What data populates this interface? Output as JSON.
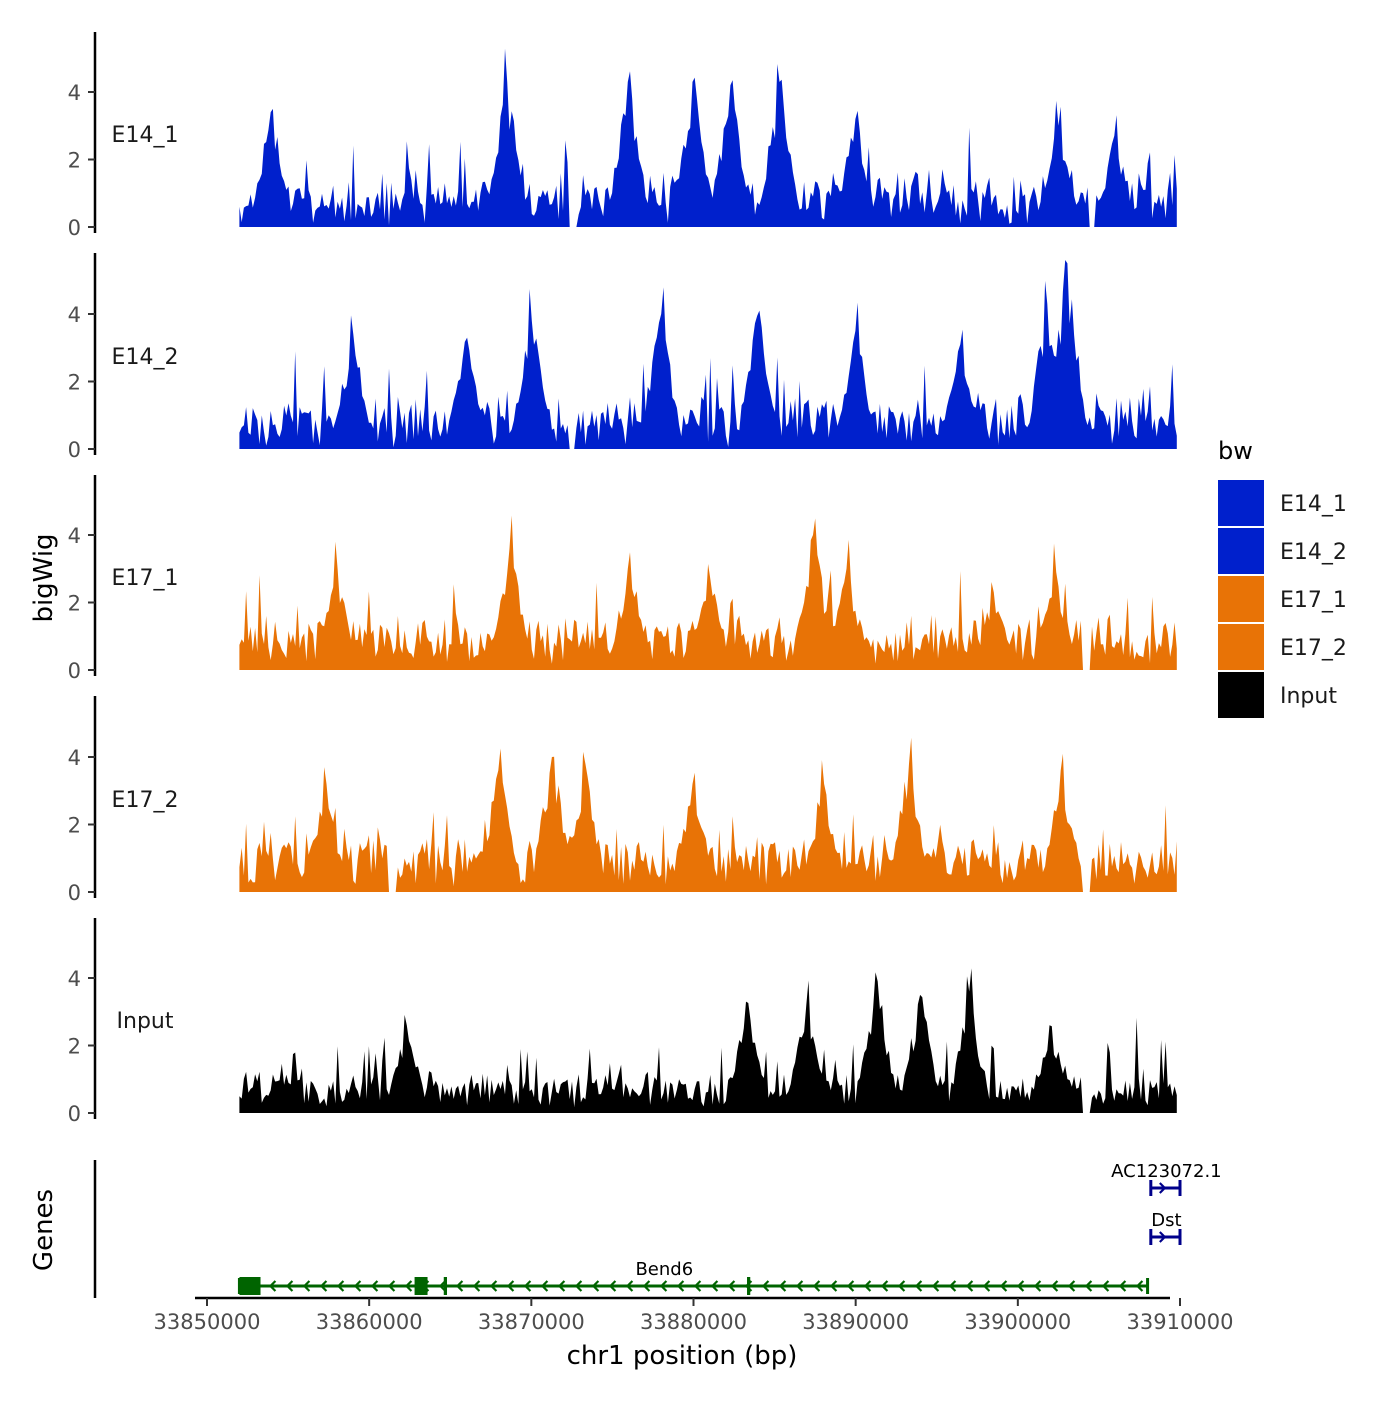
{
  "chart_data": {
    "type": "area",
    "title": "",
    "xlabel": "chr1 position (bp)",
    "ylabel": "bigWig",
    "genes_label": "Genes",
    "xlim": [
      33849000,
      33910500
    ],
    "ylim": [
      0,
      5.7
    ],
    "x_ticks": [
      33850000,
      33860000,
      33870000,
      33880000,
      33890000,
      33900000,
      33910000
    ],
    "x_tick_labels": [
      "33850000",
      "33860000",
      "33870000",
      "33880000",
      "33890000",
      "33900000",
      "33910000"
    ],
    "y_ticks": [
      0,
      2,
      4
    ],
    "y_tick_labels": [
      "0",
      "2",
      "4"
    ],
    "region": [
      33852000,
      33909800
    ],
    "legend": {
      "title": "bw",
      "position": "right",
      "entries": [
        {
          "label": "E14_1",
          "color": "#0020CC"
        },
        {
          "label": "E14_2",
          "color": "#0020CC"
        },
        {
          "label": "E17_1",
          "color": "#E87306"
        },
        {
          "label": "E17_2",
          "color": "#E87306"
        },
        {
          "label": "Input",
          "color": "#000000"
        }
      ]
    },
    "series": [
      {
        "name": "E14_1",
        "color": "#0020CC",
        "base": 1.2,
        "noise": 0.7,
        "seed": 11,
        "gaps": [
          [
            33872300,
            33872900
          ],
          [
            33904300,
            33904800
          ]
        ],
        "peaks": [
          [
            33854000,
            3.5
          ],
          [
            33868500,
            4.3
          ],
          [
            33876000,
            4.3
          ],
          [
            33880000,
            4.3
          ],
          [
            33882300,
            4.2
          ],
          [
            33885300,
            4.3
          ],
          [
            33890000,
            3.2
          ],
          [
            33902500,
            3.0
          ],
          [
            33906000,
            2.7
          ]
        ]
      },
      {
        "name": "E14_2",
        "color": "#0020CC",
        "base": 1.2,
        "noise": 0.7,
        "seed": 23,
        "gaps": [
          [
            33872300,
            33872700
          ]
        ],
        "peaks": [
          [
            33859000,
            3.4
          ],
          [
            33866000,
            3.3
          ],
          [
            33870000,
            3.8
          ],
          [
            33878000,
            4.0
          ],
          [
            33884000,
            4.1
          ],
          [
            33890000,
            3.5
          ],
          [
            33896500,
            3.1
          ],
          [
            33903000,
            5.5
          ],
          [
            33901800,
            4.3
          ]
        ]
      },
      {
        "name": "E17_1",
        "color": "#E87306",
        "base": 1.2,
        "noise": 0.55,
        "seed": 37,
        "gaps": [
          [
            33904000,
            33904500
          ]
        ],
        "peaks": [
          [
            33858000,
            3.0
          ],
          [
            33868700,
            3.6
          ],
          [
            33876000,
            3.0
          ],
          [
            33881000,
            2.7
          ],
          [
            33887400,
            4.0
          ],
          [
            33889500,
            3.0
          ],
          [
            33898500,
            2.3
          ],
          [
            33902300,
            2.9
          ]
        ]
      },
      {
        "name": "E17_2",
        "color": "#E87306",
        "base": 1.3,
        "noise": 0.65,
        "seed": 53,
        "gaps": [
          [
            33861200,
            33861700
          ],
          [
            33904000,
            33904500
          ]
        ],
        "peaks": [
          [
            33857300,
            3.2
          ],
          [
            33868000,
            3.6
          ],
          [
            33871300,
            4.0
          ],
          [
            33873300,
            3.8
          ],
          [
            33880000,
            3.2
          ],
          [
            33888000,
            3.2
          ],
          [
            33893300,
            3.8
          ],
          [
            33902700,
            3.6
          ]
        ]
      },
      {
        "name": "Input",
        "color": "#000000",
        "base": 0.95,
        "noise": 0.45,
        "seed": 71,
        "gaps": [
          [
            33904000,
            33904500
          ]
        ],
        "peaks": [
          [
            33862300,
            2.6
          ],
          [
            33883300,
            3.3
          ],
          [
            33887000,
            3.2
          ],
          [
            33891300,
            3.9
          ],
          [
            33894000,
            3.5
          ],
          [
            33897000,
            3.6
          ],
          [
            33902000,
            2.6
          ]
        ]
      }
    ],
    "genes": [
      {
        "name": "AC123072.1",
        "strand": "+",
        "start": 33908200,
        "end": 33910000,
        "color": "#00008B",
        "exons": [],
        "row": 3
      },
      {
        "name": "Dst",
        "strand": "+",
        "start": 33908200,
        "end": 33910000,
        "color": "#00008B",
        "exons": [],
        "row": 2
      },
      {
        "name": "Bend6",
        "strand": "-",
        "start": 33852000,
        "end": 33908000,
        "color": "#006400",
        "exons": [
          [
            33852000,
            33853300
          ],
          [
            33862800,
            33863600
          ],
          [
            33864600,
            33864800
          ],
          [
            33883300,
            33883500
          ]
        ],
        "row": 1
      }
    ]
  }
}
